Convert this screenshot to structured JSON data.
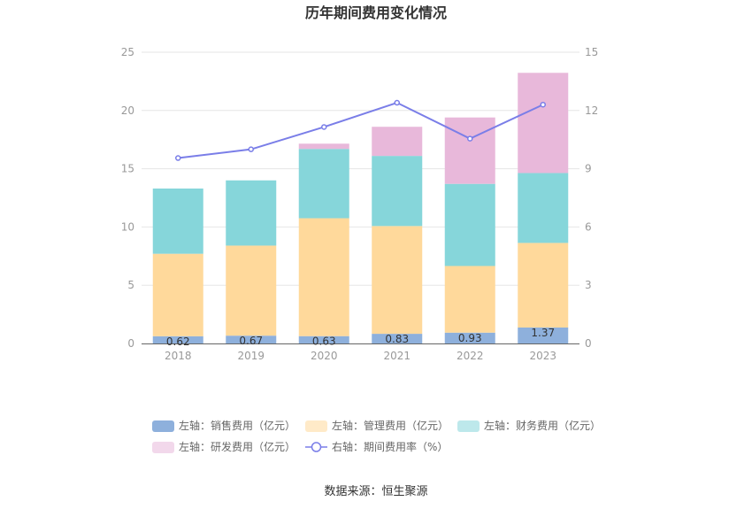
{
  "chart_data": {
    "type": "bar",
    "title": "历年期间费用变化情况",
    "categories": [
      "2018",
      "2019",
      "2020",
      "2021",
      "2022",
      "2023"
    ],
    "series": [
      {
        "name": "左轴：销售费用（亿元）",
        "axis": "left",
        "kind": "stacked-bar",
        "color": "#8eb0dc",
        "values": [
          0.62,
          0.67,
          0.63,
          0.83,
          0.93,
          1.37
        ],
        "show_labels": true
      },
      {
        "name": "左轴：管理费用（亿元）",
        "axis": "left",
        "kind": "stacked-bar",
        "color": "#ffd99b",
        "values": [
          7.08,
          7.73,
          10.12,
          9.25,
          5.72,
          7.26
        ]
      },
      {
        "name": "左轴：财务费用（亿元）",
        "axis": "left",
        "kind": "stacked-bar",
        "color": "#86d6da",
        "values": [
          5.6,
          5.6,
          5.95,
          6.02,
          7.05,
          6.0
        ]
      },
      {
        "name": "左轴：研发费用（亿元）",
        "axis": "left",
        "kind": "stacked-bar",
        "color": "#e8b8da",
        "values": [
          0,
          0,
          0.45,
          2.5,
          5.7,
          8.6
        ]
      },
      {
        "name": "右轴：期间费用率（%）",
        "axis": "right",
        "kind": "line",
        "color": "#7a7ee8",
        "values": [
          9.55,
          10.0,
          11.15,
          12.4,
          10.55,
          12.3
        ]
      }
    ],
    "left_axis": {
      "min": 0,
      "max": 25,
      "ticks": [
        0,
        5,
        10,
        15,
        20,
        25
      ]
    },
    "right_axis": {
      "min": 0,
      "max": 15,
      "ticks": [
        0,
        3,
        6,
        9,
        12,
        15
      ]
    },
    "legend_position": "bottom",
    "grid": true
  },
  "source": "数据来源：恒生聚源"
}
